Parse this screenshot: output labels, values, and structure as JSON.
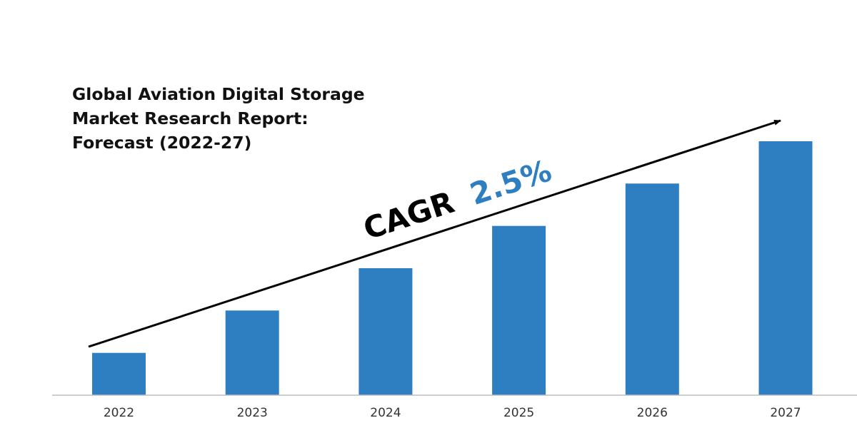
{
  "title_lines": [
    "Global Aviation Digital Storage",
    "Market Research Report:",
    "Forecast (2022-27)"
  ],
  "annotation": {
    "prefix": "CAGR",
    "value": "2.5%",
    "prefix_color": "#000000",
    "value_color": "#2E7FC1"
  },
  "colors": {
    "bar": "#2E7FC1",
    "arrow": "#000000",
    "baseline": "#BFBFBF"
  },
  "chart_data": {
    "type": "bar",
    "categories": [
      "2022",
      "2023",
      "2024",
      "2025",
      "2026",
      "2027"
    ],
    "values": [
      1,
      2,
      3,
      4,
      5,
      6
    ],
    "title": "Global Aviation Digital Storage Market Research Report: Forecast (2022-27)",
    "xlabel": "",
    "ylabel": "",
    "ylim": [
      0,
      6
    ],
    "grid": false,
    "legend": "none",
    "annotation": "CAGR 2.5%"
  }
}
